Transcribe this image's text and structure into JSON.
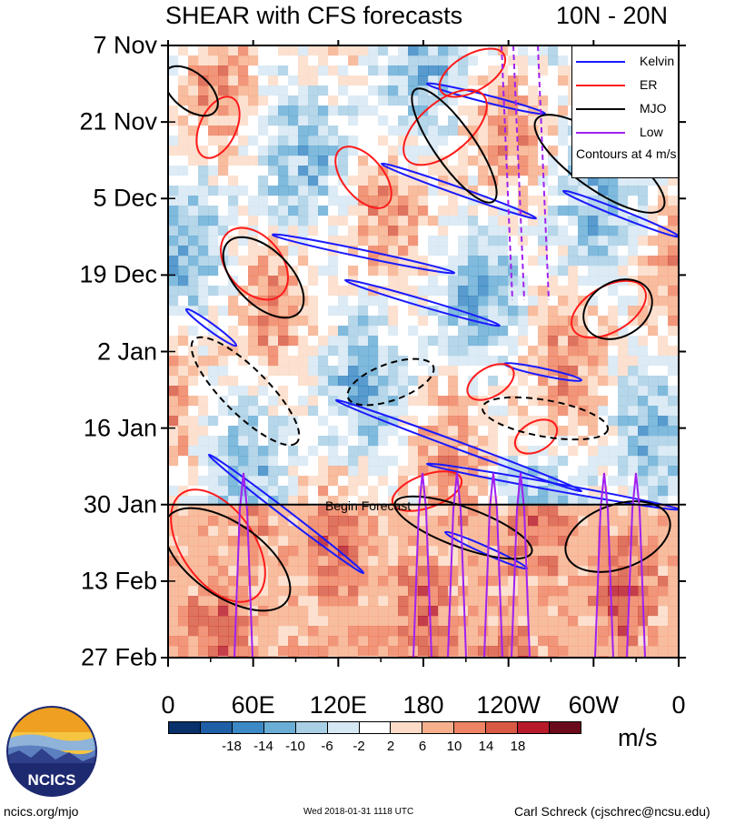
{
  "header": {
    "title": "SHEAR with CFS forecasts",
    "region": "10N - 20N"
  },
  "chart_data": {
    "type": "heatmap",
    "title": "SHEAR with CFS forecasts",
    "subtitle": "10N - 20N",
    "y_ticks": [
      "7 Nov",
      "21 Nov",
      "5 Dec",
      "19 Dec",
      "2 Jan",
      "16 Jan",
      "30 Jan",
      "13 Feb",
      "27 Feb"
    ],
    "x_ticks": [
      "0",
      "60E",
      "120E",
      "180",
      "120W",
      "60W",
      "0"
    ],
    "x_values": [
      0,
      60,
      120,
      180,
      240,
      300,
      360
    ],
    "xlim": [
      0,
      360
    ],
    "ylim_days": [
      0,
      112
    ],
    "forecast_label": "Begin Forecast",
    "forecast_day": 84,
    "legend": {
      "position": "top-right",
      "entries": [
        {
          "label": "Kelvin",
          "color": "#1a1aff"
        },
        {
          "label": "ER",
          "color": "#ff1a1a"
        },
        {
          "label": "MJO",
          "color": "#000000"
        },
        {
          "label": "Low",
          "color": "#a020f0"
        }
      ],
      "note": "Contours at 4 m/s"
    },
    "colorbar": {
      "labels": [
        "-18",
        "-14",
        "-10",
        "-6",
        "-2",
        "2",
        "6",
        "10",
        "14",
        "18"
      ],
      "colors": [
        "#08306b",
        "#1f5fa6",
        "#3c89c5",
        "#6aaed6",
        "#a9cfe5",
        "#d6e8f3",
        "#ffffff",
        "#fcdcc8",
        "#f7b08e",
        "#ee8463",
        "#d85a44",
        "#b81c2a",
        "#6b0a1a"
      ],
      "units": "m/s"
    }
  },
  "footer": {
    "left": "ncics.org/mjo",
    "middle": "Wed 2018-01-31 1118 UTC",
    "right": "Carl Schreck (cjschrec@ncsu.edu)"
  },
  "logo": {
    "text": "NCICS"
  }
}
